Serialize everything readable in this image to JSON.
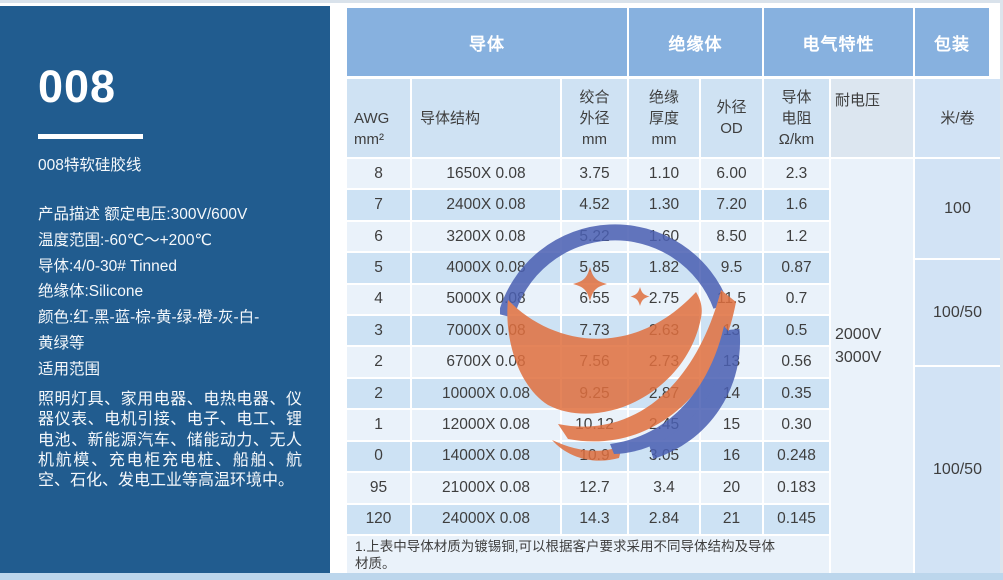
{
  "sidebar": {
    "model": "008",
    "subtitle": "008特软硅胶线",
    "desc_lines": [
      "产品描述 额定电压:300V/600V",
      "温度范围:-60℃～+200℃",
      "导体:4/0-30# Tinned",
      "绝缘体:Silicone",
      "颜色:红-黑-蓝-棕-黄-绿-橙-灰-白-\n黄绿等"
    ],
    "scope_title": "适用范围",
    "scope_text": "照明灯具、家用电器、电热电器、仪器仪表、电机引接、电子、电工、锂电池、新能源汽车、储能动力、无人机航模、充电柜充电桩、船舶、航空、石化、发电工业等高温环境中。"
  },
  "table": {
    "group_headers": [
      {
        "label": "导体"
      },
      {
        "label": "绝缘体"
      },
      {
        "label": "电气特性"
      },
      {
        "label": "包装"
      }
    ],
    "columns": [
      {
        "label": "AWG\nmm²"
      },
      {
        "label": "导体结构"
      },
      {
        "label": "绞合\n外径\nmm"
      },
      {
        "label": "绝缘\n厚度\nmm"
      },
      {
        "label": "外径\nOD"
      },
      {
        "label": "导体\n电阻\nΩ/km"
      },
      {
        "label": "耐电压"
      },
      {
        "label": "米/卷"
      }
    ],
    "rows": [
      [
        "8",
        "1650X 0.08",
        "3.75",
        "1.10",
        "6.00",
        "2.3"
      ],
      [
        "7",
        "2400X 0.08",
        "4.52",
        "1.30",
        "7.20",
        "1.6"
      ],
      [
        "6",
        "3200X 0.08",
        "5.22",
        "1.60",
        "8.50",
        "1.2"
      ],
      [
        "5",
        "4000X 0.08",
        "5.85",
        "1.82",
        "9.5",
        "0.87"
      ],
      [
        "4",
        "5000X 0.08",
        "6.55",
        "2.75",
        "11.5",
        "0.7"
      ],
      [
        "3",
        "7000X 0.08",
        "7.73",
        "2.63",
        "13",
        "0.5"
      ],
      [
        "2",
        "6700X 0.08",
        "7.56",
        "2.73",
        "13",
        "0.56"
      ],
      [
        "2",
        "10000X 0.08",
        "9.25",
        "2.87",
        "14",
        "0.35"
      ],
      [
        "1",
        "12000X 0.08",
        "10.12",
        "2.45",
        "15",
        "0.30"
      ],
      [
        "0",
        "14000X 0.08",
        "10.9",
        "3.05",
        "16",
        "0.248"
      ],
      [
        "95",
        "21000X 0.08",
        "12.7",
        "3.4",
        "20",
        "0.183"
      ],
      [
        "120",
        "24000X 0.08",
        "14.3",
        "2.84",
        "21",
        "0.145"
      ]
    ],
    "voltage_label": "2000V\n3000V",
    "packaging_cells": [
      {
        "label": "100"
      },
      {
        "label": "100/50"
      },
      {
        "label": "100/50"
      }
    ],
    "note": "1.上表中导体材质为镀锡铜,可以根据客户要求采用不同导体结构及导体材质。"
  },
  "watermark": {
    "name": "company-logo-watermark"
  },
  "colors": {
    "sidebar_bg": "#215c8f",
    "group_header_bg": "#87b1df",
    "header_cell_bg": "#cfe2f3",
    "row_light_bg": "#eaf2fa",
    "row_dark_bg": "#cde2f4",
    "packaging_cell_bg": "#d2e3f5",
    "bottom_strip": "#bcd6ec",
    "watermark_blue": "#4a5fb2",
    "watermark_orange": "#e06f3e",
    "text": "#3e3e3e"
  }
}
